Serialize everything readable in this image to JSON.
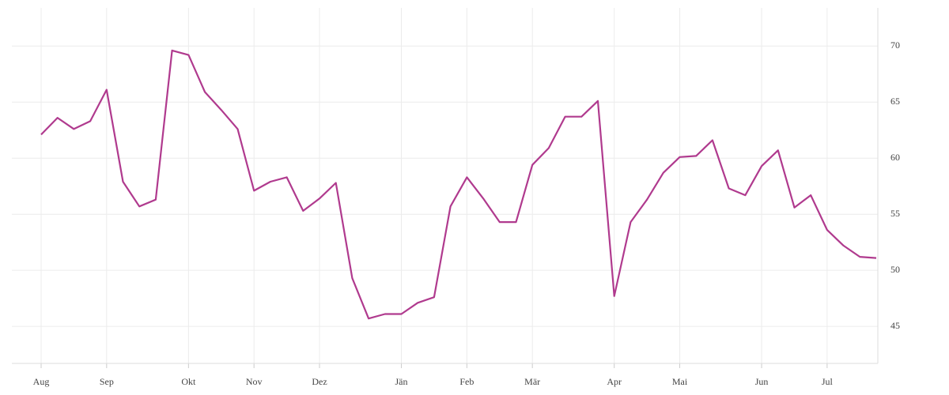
{
  "chart_data": {
    "type": "line",
    "categories": [
      "Aug",
      null,
      null,
      null,
      "Sep",
      null,
      null,
      null,
      null,
      "Okt",
      null,
      null,
      null,
      "Nov",
      null,
      null,
      null,
      "Dez",
      null,
      null,
      null,
      null,
      "Jän",
      null,
      null,
      null,
      "Feb",
      null,
      null,
      null,
      "Mär",
      null,
      null,
      null,
      null,
      "Apr",
      null,
      null,
      null,
      "Mai",
      null,
      null,
      null,
      null,
      "Jun",
      null,
      null,
      null,
      "Jul",
      null,
      null,
      null
    ],
    "series": [
      {
        "color": "#b03a8e",
        "values": [
          62.1,
          63.6,
          62.6,
          63.3,
          66.1,
          57.9,
          55.7,
          56.3,
          69.6,
          69.2,
          65.9,
          64.3,
          62.6,
          57.1,
          57.9,
          58.3,
          55.3,
          56.4,
          57.8,
          49.3,
          45.7,
          46.1,
          46.1,
          47.1,
          47.6,
          55.7,
          58.3,
          56.4,
          54.3,
          54.3,
          59.4,
          60.9,
          63.7,
          63.7,
          65.1,
          47.7,
          54.3,
          56.3,
          58.7,
          60.1,
          60.2,
          61.6,
          57.3,
          56.7,
          59.3,
          60.7,
          55.6,
          56.7,
          53.6,
          52.2,
          51.2,
          51.1
        ]
      }
    ],
    "ylim": [
      41.7,
      73.4
    ],
    "yticks": [
      45,
      50,
      55,
      60,
      65,
      70
    ],
    "grid": true
  }
}
